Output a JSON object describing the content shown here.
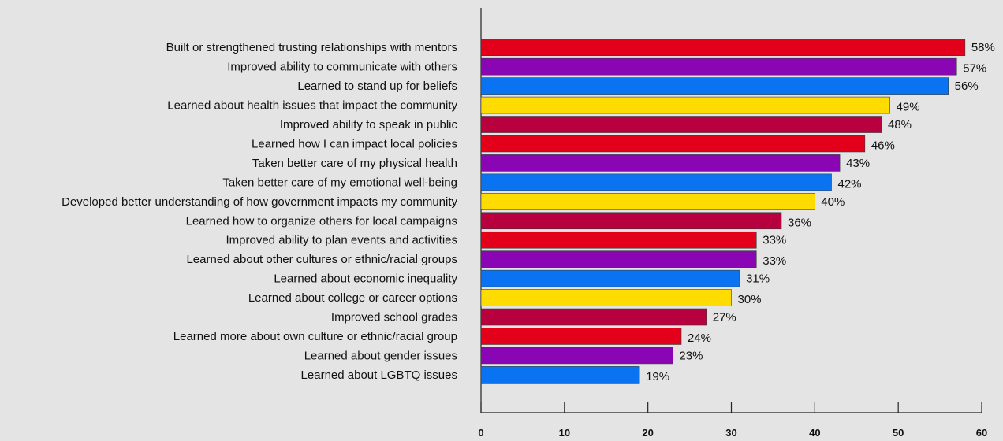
{
  "chart_data": {
    "type": "bar",
    "orientation": "horizontal",
    "categories": [
      "Built or strengthened trusting relationships with mentors",
      "Improved ability to communicate with others",
      "Learned to stand up for beliefs",
      "Learned about health issues that impact the community",
      "Improved ability to speak in public",
      "Learned how I can impact local policies",
      "Taken better care of my physical health",
      "Taken better care of my emotional well-being",
      "Developed better understanding of how government impacts my community",
      "Learned how to organize others for local campaigns",
      "Improved ability to plan events and activities",
      "Learned about other cultures or ethnic/racial groups",
      "Learned about economic inequality",
      "Learned about college or career options",
      "Improved school grades",
      "Learned more about own culture or ethnic/racial group",
      "Learned about gender issues",
      "Learned about LGBTQ issues"
    ],
    "values": [
      58,
      57,
      56,
      49,
      48,
      46,
      43,
      42,
      40,
      36,
      33,
      33,
      31,
      30,
      27,
      24,
      23,
      19
    ],
    "value_labels": [
      "58%",
      "57%",
      "56%",
      "49%",
      "48%",
      "46%",
      "43%",
      "42%",
      "40%",
      "36%",
      "33%",
      "33%",
      "31%",
      "30%",
      "27%",
      "24%",
      "23%",
      "19%"
    ],
    "colors": [
      "#e3001b",
      "#8a06b4",
      "#0a73f2",
      "#ffdc00",
      "#b8003e",
      "#e3001b",
      "#8a06b4",
      "#0a73f2",
      "#ffdc00",
      "#b8003e",
      "#e3001b",
      "#8a06b4",
      "#0a73f2",
      "#ffdc00",
      "#b8003e",
      "#e3001b",
      "#8a06b4",
      "#0a73f2"
    ],
    "xlim": [
      0,
      60
    ],
    "xticks": [
      0,
      10,
      20,
      30,
      40,
      50,
      60
    ],
    "xtick_labels": [
      "0",
      "10",
      "20",
      "30",
      "40",
      "50",
      "60"
    ],
    "title": "",
    "xlabel": "",
    "ylabel": "",
    "grid": false,
    "legend": "none",
    "background": "#e4e4e4"
  }
}
